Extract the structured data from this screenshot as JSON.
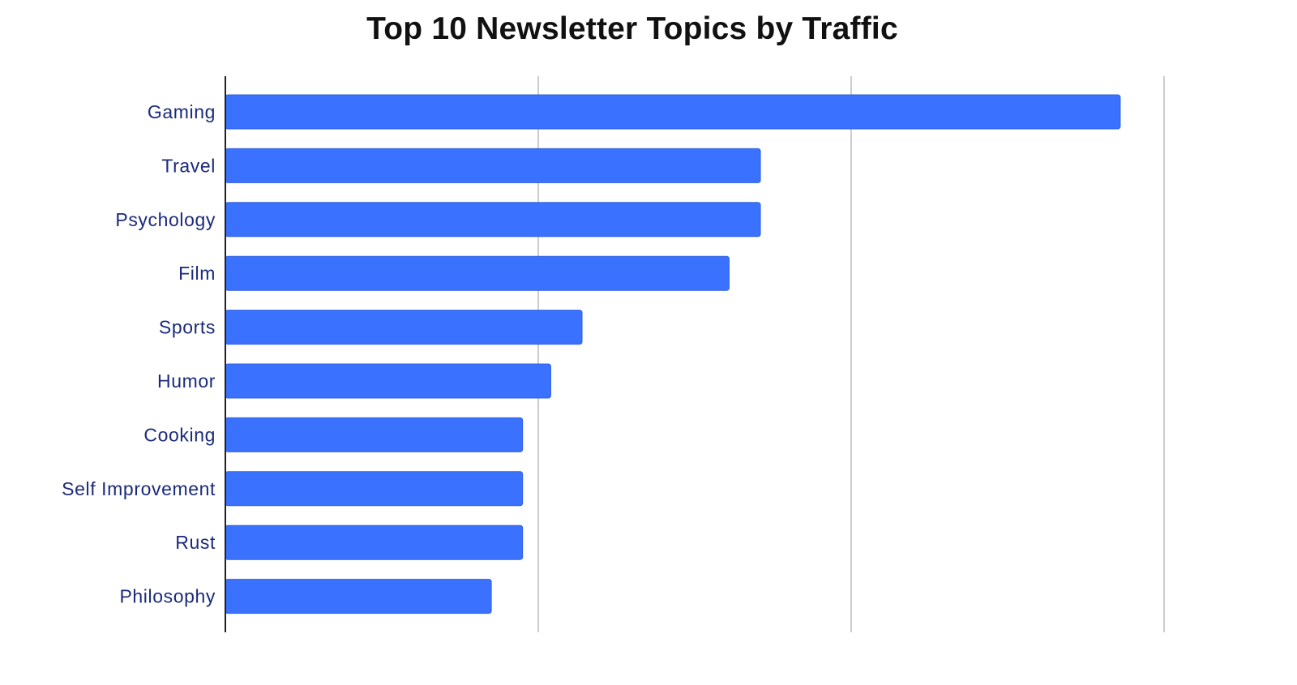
{
  "chart_data": {
    "type": "bar",
    "orientation": "horizontal",
    "title": "Top 10 Newsletter Topics by Traffic",
    "xlabel": "",
    "ylabel": "",
    "categories": [
      "Gaming",
      "Travel",
      "Psychology",
      "Film",
      "Sports",
      "Humor",
      "Cooking",
      "Self Improvement",
      "Rust",
      "Philosophy"
    ],
    "values": [
      2.86,
      1.71,
      1.71,
      1.61,
      1.14,
      1.04,
      0.95,
      0.95,
      0.95,
      0.85
    ],
    "xlim": [
      0,
      3
    ],
    "grid": true,
    "legend": "none",
    "tick_labels_shown": false
  },
  "colors": {
    "bar": "#3a72ff",
    "bar_edge": "#2f5fdc",
    "label": "#1b2a7a",
    "grid": "#cccccc",
    "axis": "#222222",
    "title": "#111111"
  }
}
